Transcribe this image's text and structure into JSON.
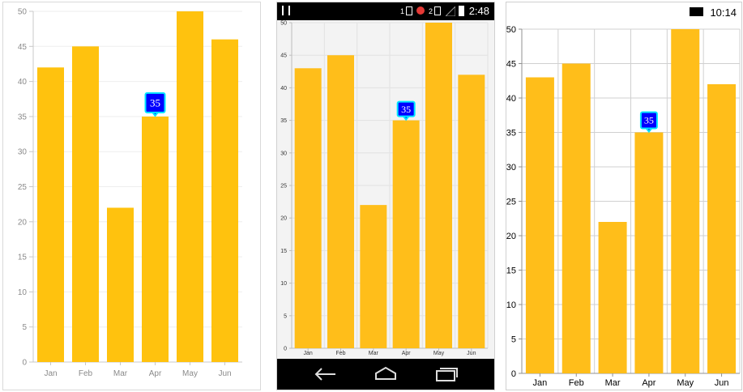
{
  "chart_data": [
    {
      "type": "bar",
      "variant": "left-panel",
      "categories": [
        "Jan",
        "Feb",
        "Mar",
        "Apr",
        "May",
        "Jun"
      ],
      "values": [
        42,
        45,
        22,
        35,
        50,
        46
      ],
      "y_ticks": [
        "0",
        "5",
        "10",
        "15",
        "20",
        "25",
        "30",
        "35",
        "40",
        "45",
        "50"
      ],
      "ylim": [
        0,
        50
      ],
      "bar_color": "#FFC20E",
      "tooltip": {
        "category": "Apr",
        "label": "35"
      },
      "tooltip_bg": "#0000FF",
      "tooltip_border": "#00E5FF"
    },
    {
      "type": "bar",
      "variant": "android-panel",
      "categories": [
        "Jan",
        "Feb",
        "Mar",
        "Apr",
        "May",
        "Jun"
      ],
      "values": [
        43,
        45,
        22,
        35,
        50,
        42
      ],
      "y_ticks": [
        "0",
        "5",
        "10",
        "15",
        "20",
        "25",
        "30",
        "35",
        "40",
        "45",
        "50"
      ],
      "ylim": [
        0,
        50
      ],
      "bar_color": "#FFBE1A",
      "tooltip": {
        "category": "Apr",
        "label": "35"
      },
      "tooltip_bg": "#0000FF",
      "tooltip_border": "#00E5FF"
    },
    {
      "type": "bar",
      "variant": "windows-panel",
      "categories": [
        "Jan",
        "Feb",
        "Mar",
        "Apr",
        "May",
        "Jun"
      ],
      "values": [
        43,
        45,
        22,
        35,
        50,
        42
      ],
      "y_ticks": [
        "0",
        "5",
        "10",
        "15",
        "20",
        "25",
        "30",
        "35",
        "40",
        "45",
        "50"
      ],
      "ylim": [
        0,
        50
      ],
      "bar_color": "#FFBE1A",
      "tooltip": {
        "category": "Apr",
        "label": "35"
      },
      "tooltip_bg": "#0000FF",
      "tooltip_border": "#00E5FF"
    }
  ],
  "android": {
    "time": "2:48",
    "sim1": "1",
    "sim2": "2"
  },
  "windows": {
    "time": "10:14"
  },
  "icons": {
    "android_status": [
      "menu-icon",
      "sim-icon",
      "sim-icon",
      "signal-icon",
      "battery-icon"
    ],
    "android_nav": [
      "back-icon",
      "home-icon",
      "recents-icon"
    ],
    "windows_status": [
      "battery-charging-icon"
    ]
  }
}
